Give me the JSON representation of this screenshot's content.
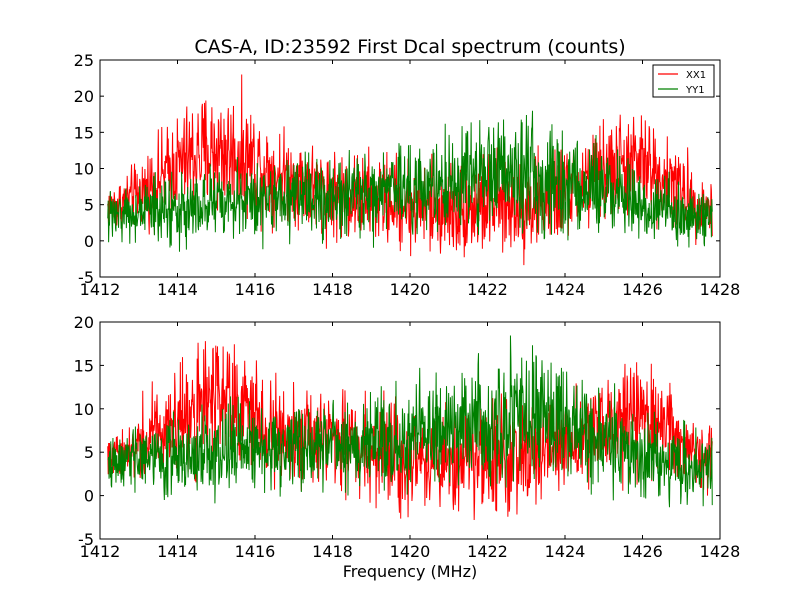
{
  "chart_data": [
    {
      "type": "line",
      "title": "CAS-A, ID:23592 First Dcal spectrum (counts)",
      "xlabel": "",
      "ylabel": "",
      "xlim": [
        1412,
        1428
      ],
      "ylim": [
        -5,
        25
      ],
      "xticks": [
        1412,
        1414,
        1416,
        1418,
        1420,
        1422,
        1424,
        1426,
        1428
      ],
      "yticks": [
        -5,
        0,
        5,
        10,
        15,
        20,
        25
      ],
      "legend": {
        "placement": "top-right",
        "entries": [
          "XX1",
          "YY1"
        ]
      },
      "grid": false,
      "series": [
        {
          "name": "XX1",
          "color": "#ff0000",
          "x": [
            1412.2,
            1412.5,
            1413.0,
            1413.5,
            1414.0,
            1414.5,
            1415.0,
            1415.5,
            1416.0,
            1416.5,
            1417.0,
            1417.5,
            1418.0,
            1418.5,
            1419.0,
            1419.5,
            1420.0,
            1420.5,
            1421.0,
            1421.5,
            1422.0,
            1422.5,
            1423.0,
            1423.5,
            1424.0,
            1424.5,
            1425.0,
            1425.5,
            1426.0,
            1426.5,
            1427.0,
            1427.5,
            1427.8
          ],
          "mean": [
            4.5,
            5.0,
            6.5,
            8.5,
            10.5,
            12.0,
            12.5,
            12.0,
            11.0,
            9.5,
            8.5,
            7.5,
            6.5,
            6.0,
            6.0,
            5.5,
            5.0,
            4.5,
            4.5,
            4.5,
            5.0,
            5.0,
            5.0,
            5.5,
            6.5,
            8.0,
            9.5,
            10.5,
            10.5,
            9.0,
            7.0,
            5.0,
            4.5
          ],
          "spread": [
            1.8,
            1.8,
            2.2,
            2.8,
            3.4,
            3.8,
            4.2,
            4.0,
            3.6,
            3.2,
            3.0,
            3.0,
            3.0,
            3.0,
            3.0,
            3.0,
            3.2,
            3.2,
            3.2,
            3.2,
            3.4,
            3.4,
            3.4,
            3.2,
            3.0,
            3.2,
            3.4,
            3.6,
            3.4,
            3.0,
            2.6,
            2.2,
            2.0
          ]
        },
        {
          "name": "YY1",
          "color": "#008000",
          "x": [
            1412.2,
            1413.0,
            1414.0,
            1415.0,
            1416.0,
            1417.0,
            1418.0,
            1419.0,
            1420.0,
            1421.0,
            1421.5,
            1422.0,
            1422.5,
            1423.0,
            1423.5,
            1424.0,
            1424.5,
            1425.0,
            1425.5,
            1426.0,
            1426.5,
            1427.0,
            1427.8
          ],
          "mean": [
            3.5,
            4.0,
            4.5,
            5.0,
            5.5,
            6.0,
            6.0,
            6.5,
            7.0,
            8.0,
            8.5,
            9.0,
            9.5,
            9.5,
            9.0,
            8.5,
            7.5,
            6.5,
            5.5,
            4.5,
            4.0,
            3.5,
            3.5
          ],
          "spread": [
            1.6,
            2.0,
            2.4,
            2.6,
            2.6,
            2.6,
            2.8,
            2.8,
            3.0,
            3.2,
            3.4,
            3.6,
            3.8,
            3.8,
            3.6,
            3.4,
            3.2,
            3.0,
            2.8,
            2.6,
            2.4,
            2.2,
            2.0
          ]
        }
      ]
    },
    {
      "type": "line",
      "title": "",
      "xlabel": "Frequency (MHz)",
      "ylabel": "",
      "xlim": [
        1412,
        1428
      ],
      "ylim": [
        -5,
        20
      ],
      "xticks": [
        1412,
        1414,
        1416,
        1418,
        1420,
        1422,
        1424,
        1426,
        1428
      ],
      "yticks": [
        -5,
        0,
        5,
        10,
        15,
        20
      ],
      "grid": false,
      "series": [
        {
          "name": "XX1",
          "color": "#ff0000",
          "x": [
            1412.2,
            1412.5,
            1413.0,
            1413.5,
            1414.0,
            1414.5,
            1415.0,
            1415.5,
            1416.0,
            1416.5,
            1417.0,
            1417.5,
            1418.0,
            1418.5,
            1419.0,
            1419.5,
            1420.0,
            1420.5,
            1421.0,
            1421.5,
            1422.0,
            1422.5,
            1423.0,
            1423.5,
            1424.0,
            1424.5,
            1425.0,
            1425.5,
            1426.0,
            1426.5,
            1427.0,
            1427.5,
            1427.8
          ],
          "mean": [
            4.0,
            4.5,
            6.0,
            7.5,
            9.0,
            10.0,
            10.5,
            10.0,
            9.0,
            8.0,
            7.0,
            6.5,
            6.0,
            5.5,
            5.5,
            5.0,
            4.5,
            4.0,
            4.0,
            4.0,
            4.5,
            4.5,
            4.5,
            5.0,
            6.0,
            7.0,
            8.0,
            9.0,
            9.0,
            8.0,
            6.5,
            5.0,
            4.0
          ],
          "spread": [
            1.6,
            1.8,
            2.2,
            2.6,
            3.0,
            3.4,
            3.6,
            3.4,
            3.0,
            2.8,
            2.8,
            2.8,
            2.8,
            2.8,
            2.8,
            2.8,
            3.0,
            3.0,
            3.0,
            3.0,
            3.2,
            3.2,
            3.2,
            3.0,
            2.8,
            2.8,
            3.0,
            3.2,
            3.0,
            2.8,
            2.4,
            2.0,
            1.8
          ]
        },
        {
          "name": "YY1",
          "color": "#008000",
          "x": [
            1412.2,
            1413.0,
            1414.0,
            1415.0,
            1416.0,
            1417.0,
            1418.0,
            1419.0,
            1420.0,
            1421.0,
            1421.5,
            1422.0,
            1422.5,
            1423.0,
            1423.5,
            1424.0,
            1424.5,
            1425.0,
            1425.5,
            1426.0,
            1426.5,
            1427.0,
            1427.8
          ],
          "mean": [
            3.5,
            4.0,
            4.5,
            5.0,
            5.5,
            5.5,
            6.0,
            6.0,
            6.5,
            7.5,
            8.0,
            8.5,
            9.0,
            9.0,
            9.0,
            8.5,
            7.5,
            6.5,
            5.5,
            4.5,
            4.0,
            3.5,
            3.5
          ],
          "spread": [
            1.6,
            1.8,
            2.2,
            2.4,
            2.4,
            2.4,
            2.6,
            2.6,
            2.8,
            3.0,
            3.2,
            3.4,
            3.6,
            3.6,
            3.4,
            3.2,
            3.0,
            2.8,
            2.6,
            2.4,
            2.2,
            2.0,
            1.8
          ]
        }
      ]
    }
  ]
}
